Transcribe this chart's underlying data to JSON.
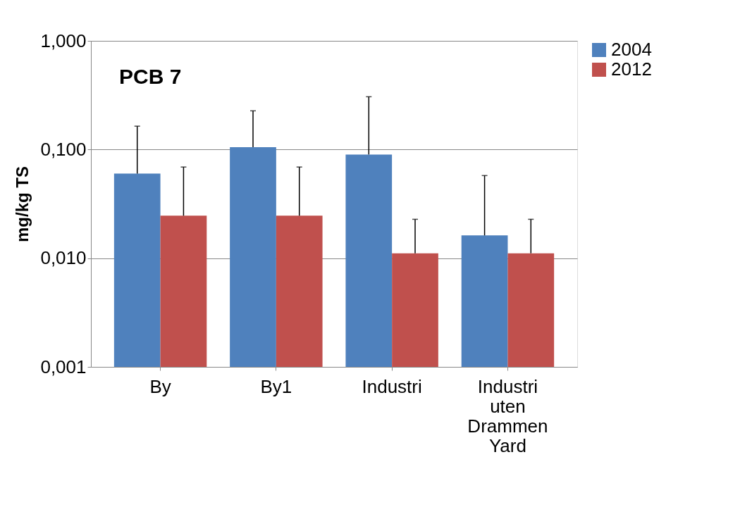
{
  "chart_data": {
    "type": "bar",
    "title": "PCB 7",
    "ylabel": "mg/kg TS",
    "categories": [
      "By",
      "By1",
      "Industri",
      "Industri uten Drammen Yard"
    ],
    "series": [
      {
        "name": "2004",
        "color": "#4f81bd",
        "values": [
          0.06,
          0.105,
          0.09,
          0.0162
        ],
        "errors": [
          [
            0.06,
            0.164
          ],
          [
            0.105,
            0.227
          ],
          [
            0.09,
            0.306
          ],
          [
            0.0162,
            0.0576
          ]
        ]
      },
      {
        "name": "2012",
        "color": "#c0504d",
        "values": [
          0.0246,
          0.0246,
          0.0111,
          0.0111
        ],
        "errors": [
          [
            0.0246,
            0.069
          ],
          [
            0.0246,
            0.069
          ],
          [
            0.0111,
            0.0228
          ],
          [
            0.0111,
            0.0228
          ]
        ]
      }
    ],
    "log": true,
    "ylim": [
      0.001,
      1
    ],
    "yticks": [
      {
        "value": 0.001,
        "label": "0,001"
      },
      {
        "value": 0.01,
        "label": "0,010"
      },
      {
        "value": 0.1,
        "label": "0,100"
      },
      {
        "value": 1,
        "label": "1,000"
      }
    ],
    "grid": "y",
    "legend": "right"
  }
}
